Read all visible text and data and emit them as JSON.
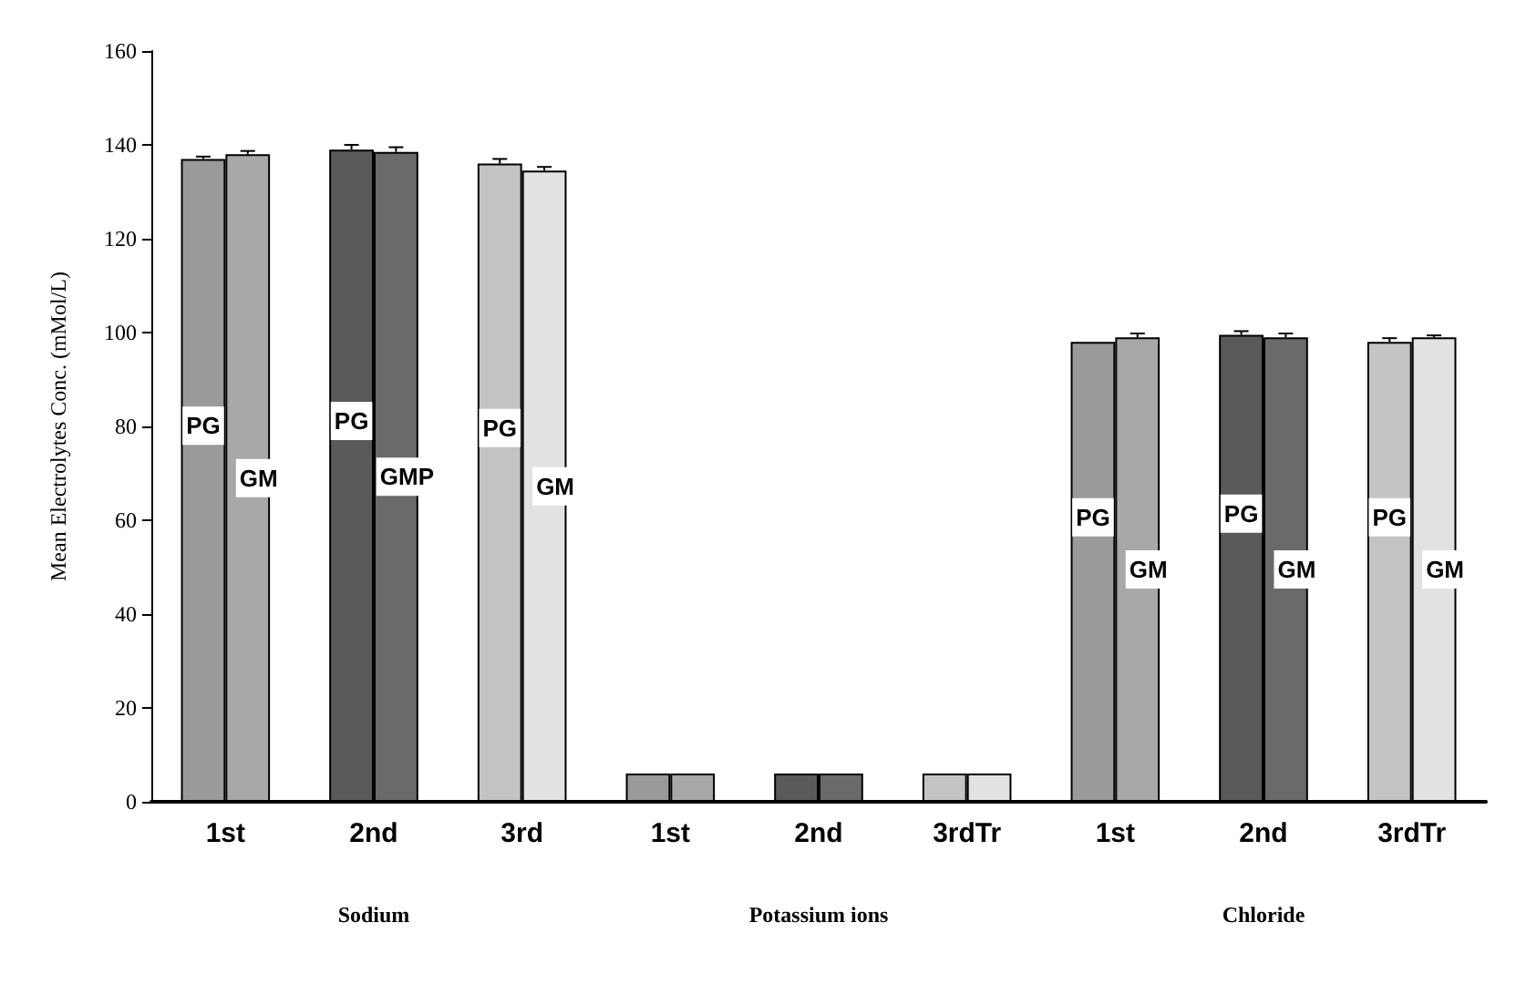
{
  "chart_data": {
    "type": "bar",
    "ylabel": "Mean Electrolytes Conc. (mMol/L)",
    "categories": [
      "1st",
      "2nd",
      "3rd",
      "1st",
      "2nd",
      "3rdTr",
      "1st",
      "2nd",
      "3rdTr"
    ],
    "series": [
      {
        "colors": [
          "#9a9a9a",
          "#5a5a5a",
          "#c4c4c4",
          "#9a9a9a",
          "#5a5a5a",
          "#c4c4c4",
          "#9a9a9a",
          "#5a5a5a",
          "#c4c4c4"
        ],
        "values": [
          137,
          139,
          136,
          6,
          6,
          6,
          98,
          99.5,
          98
        ],
        "errors": [
          0.5,
          1,
          1,
          null,
          null,
          null,
          null,
          0.8,
          0.8
        ],
        "value_labels": [
          "PG",
          "PG",
          "PG",
          null,
          null,
          null,
          "PG",
          "PG",
          "PG"
        ]
      },
      {
        "colors": [
          "#a8a8a8",
          "#6a6a6a",
          "#e2e2e2",
          "#a8a8a8",
          "#6a6a6a",
          "#e2e2e2",
          "#a8a8a8",
          "#6a6a6a",
          "#e2e2e2"
        ],
        "values": [
          138,
          138.5,
          134.5,
          6,
          6,
          6,
          99,
          99,
          99
        ],
        "errors": [
          0.7,
          1,
          0.8,
          null,
          null,
          null,
          0.8,
          0.8,
          0.4
        ],
        "value_labels": [
          "GM",
          "GMP",
          "GM",
          null,
          null,
          null,
          "GM",
          "GM",
          "GM"
        ]
      }
    ],
    "annotations": [
      "Sodium",
      "Potassium ions",
      "Chloride"
    ],
    "ylim": [
      0,
      160
    ],
    "yticks": [
      0,
      20,
      40,
      60,
      80,
      100,
      120,
      140,
      160
    ],
    "grid": false
  }
}
